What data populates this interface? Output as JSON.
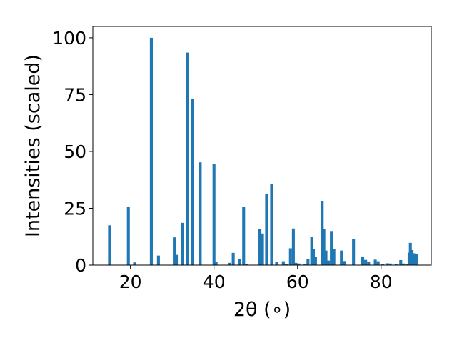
{
  "chart_data": {
    "type": "bar",
    "title": "",
    "xlabel": "2θ (∘)",
    "ylabel": "Intensities (scaled)",
    "xlim": [
      11,
      92
    ],
    "ylim": [
      0,
      105
    ],
    "xticks": [
      20,
      40,
      60,
      80
    ],
    "yticks": [
      0,
      25,
      50,
      75,
      100
    ],
    "grid": false,
    "bar_color": "#1f77b4",
    "bar_width": 0.7,
    "series": [
      {
        "x": [
          15.0,
          19.5,
          21.0,
          25.0,
          26.7,
          30.5,
          31.0,
          32.5,
          33.6,
          34.8,
          36.7,
          40.0,
          40.5,
          43.8,
          44.6,
          46.2,
          47.1,
          47.8,
          51.0,
          51.6,
          52.6,
          53.8,
          55.0,
          56.6,
          57.3,
          58.3,
          59.0,
          59.6,
          60.3,
          61.8,
          62.5,
          63.4,
          63.8,
          64.3,
          65.9,
          66.3,
          66.8,
          67.4,
          68.1,
          68.7,
          70.5,
          71.2,
          73.4,
          75.6,
          76.3,
          77.0,
          78.6,
          79.3,
          80.4,
          81.5,
          82.2,
          83.6,
          84.7,
          85.4,
          86.2,
          86.7,
          87.0,
          87.4,
          87.8,
          88.4
        ],
        "y": [
          17.5,
          25.8,
          1.2,
          100.0,
          4.2,
          12.2,
          4.5,
          18.6,
          93.5,
          73.2,
          45.2,
          44.6,
          1.5,
          1.0,
          5.4,
          2.6,
          25.5,
          0.6,
          16.0,
          13.9,
          31.4,
          35.6,
          1.4,
          1.7,
          0.6,
          7.4,
          16.1,
          1.0,
          0.7,
          0.6,
          2.8,
          12.5,
          7.0,
          3.6,
          28.3,
          15.8,
          6.4,
          2.0,
          15.0,
          7.0,
          6.4,
          1.8,
          11.6,
          3.8,
          2.3,
          1.6,
          2.4,
          1.7,
          0.5,
          0.8,
          0.7,
          0.5,
          2.2,
          0.7,
          0.6,
          5.5,
          9.8,
          6.6,
          5.2,
          4.9
        ]
      }
    ]
  }
}
